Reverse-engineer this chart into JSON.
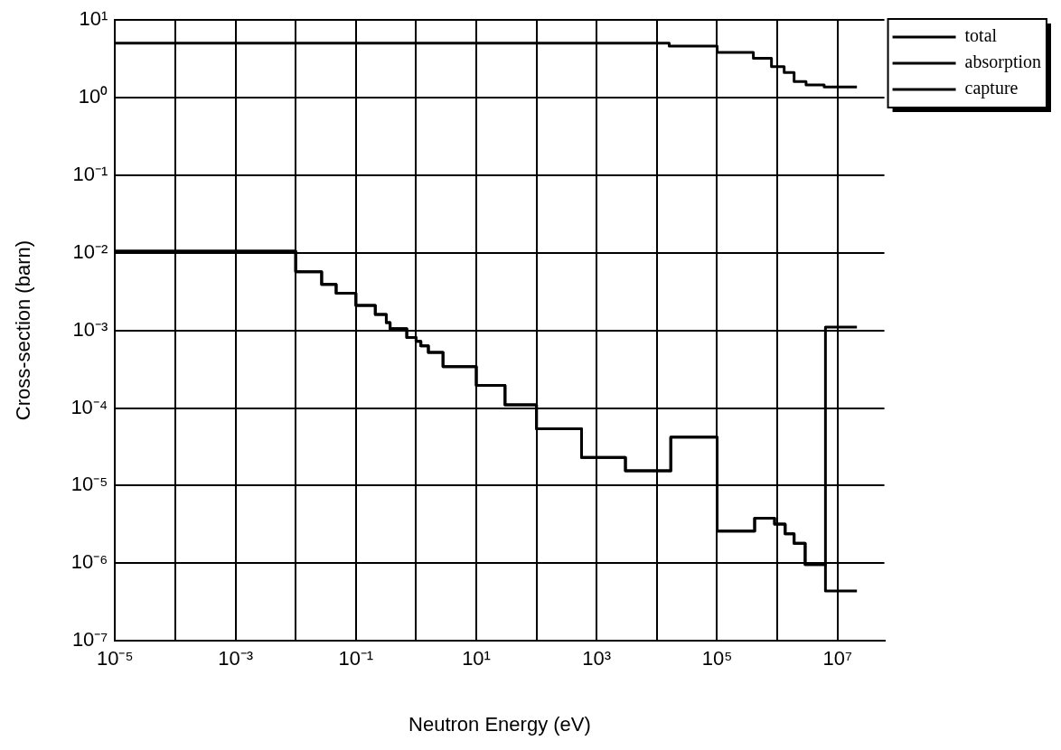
{
  "chart_data": {
    "type": "step",
    "xlabel": "Neutron Energy (eV)",
    "ylabel": "Cross-section (barn)",
    "log": "xy",
    "grid": true,
    "legend": "top right",
    "line_style": "solid",
    "marker": "none",
    "xlim": [
      1e-05,
      60000000.0
    ],
    "ylim": [
      1e-07,
      10
    ],
    "xticks": [
      {
        "value": 1e-05,
        "label": "10⁻⁵"
      },
      {
        "value": 0.0001,
        "label": null
      },
      {
        "value": 0.001,
        "label": "10⁻³"
      },
      {
        "value": 0.01,
        "label": null
      },
      {
        "value": 0.1,
        "label": "10⁻¹"
      },
      {
        "value": 1,
        "label": null
      },
      {
        "value": 10,
        "label": "10¹"
      },
      {
        "value": 100,
        "label": null
      },
      {
        "value": 1000,
        "label": "10³"
      },
      {
        "value": 10000.0,
        "label": null
      },
      {
        "value": 100000.0,
        "label": "10⁵"
      },
      {
        "value": 1000000.0,
        "label": null
      },
      {
        "value": 10000000.0,
        "label": "10⁷"
      }
    ],
    "yticks": [
      {
        "value": 1e-07,
        "label": "10⁻⁷"
      },
      {
        "value": 1e-06,
        "label": "10⁻⁶"
      },
      {
        "value": 1e-05,
        "label": "10⁻⁵"
      },
      {
        "value": 0.0001,
        "label": "10⁻⁴"
      },
      {
        "value": 0.001,
        "label": "10⁻³"
      },
      {
        "value": 0.01,
        "label": "10⁻²"
      },
      {
        "value": 0.1,
        "label": "10⁻¹"
      },
      {
        "value": 1,
        "label": "10⁰"
      },
      {
        "value": 10,
        "label": "10¹"
      }
    ],
    "series": [
      {
        "name": "total",
        "color": "#000000",
        "x": [
          1e-05,
          16000.0,
          100000.0,
          400000.0,
          800000.0,
          1300000.0,
          1900000.0,
          3000000.0,
          6000000.0,
          21000000.0
        ],
        "values": [
          5,
          4.6,
          3.8,
          3.2,
          2.5,
          2.1,
          1.6,
          1.45,
          1.37,
          1.37
        ]
      },
      {
        "name": "absorption",
        "color": "#000000",
        "x": [
          1e-05,
          0.01,
          0.027,
          0.047,
          0.1,
          0.21,
          0.32,
          0.37,
          0.7,
          1,
          1.2,
          1.6,
          2.8,
          10,
          30,
          100,
          560,
          3000,
          17000.0,
          100000.0,
          420000.0,
          900000.0,
          1350000.0,
          1900000.0,
          2900000.0,
          6300000.0,
          21000000.0
        ],
        "values": [
          0.0105,
          0.0057,
          0.0039,
          0.003,
          0.0021,
          0.0016,
          0.00126,
          0.00105,
          0.00081,
          0.00072,
          0.00063,
          0.00052,
          0.00034,
          0.000195,
          0.00011,
          5.4e-05,
          2.3e-05,
          1.55e-05,
          4.2e-05,
          2.6e-06,
          3.8e-06,
          3.2e-06,
          2.4e-06,
          1.8e-06,
          9.6e-07,
          0.0011,
          0.0011
        ]
      },
      {
        "name": "capture",
        "color": "#000000",
        "x": [
          1e-05,
          0.01,
          0.027,
          0.047,
          0.1,
          0.21,
          0.32,
          0.37,
          0.7,
          1,
          1.2,
          1.6,
          2.8,
          10,
          30,
          100,
          560,
          3000,
          17000.0,
          100000.0,
          420000.0,
          900000.0,
          1350000.0,
          1900000.0,
          2900000.0,
          6300000.0,
          21000000.0
        ],
        "values": [
          0.0105,
          0.0057,
          0.0039,
          0.003,
          0.0021,
          0.0016,
          0.00126,
          0.00105,
          0.00081,
          0.00072,
          0.00063,
          0.00052,
          0.00034,
          0.000195,
          0.00011,
          5.4e-05,
          2.3e-05,
          1.55e-05,
          4.2e-05,
          2.6e-06,
          3.8e-06,
          3.2e-06,
          2.4e-06,
          1.8e-06,
          9.6e-07,
          4.4e-07,
          4.4e-07
        ]
      }
    ]
  }
}
